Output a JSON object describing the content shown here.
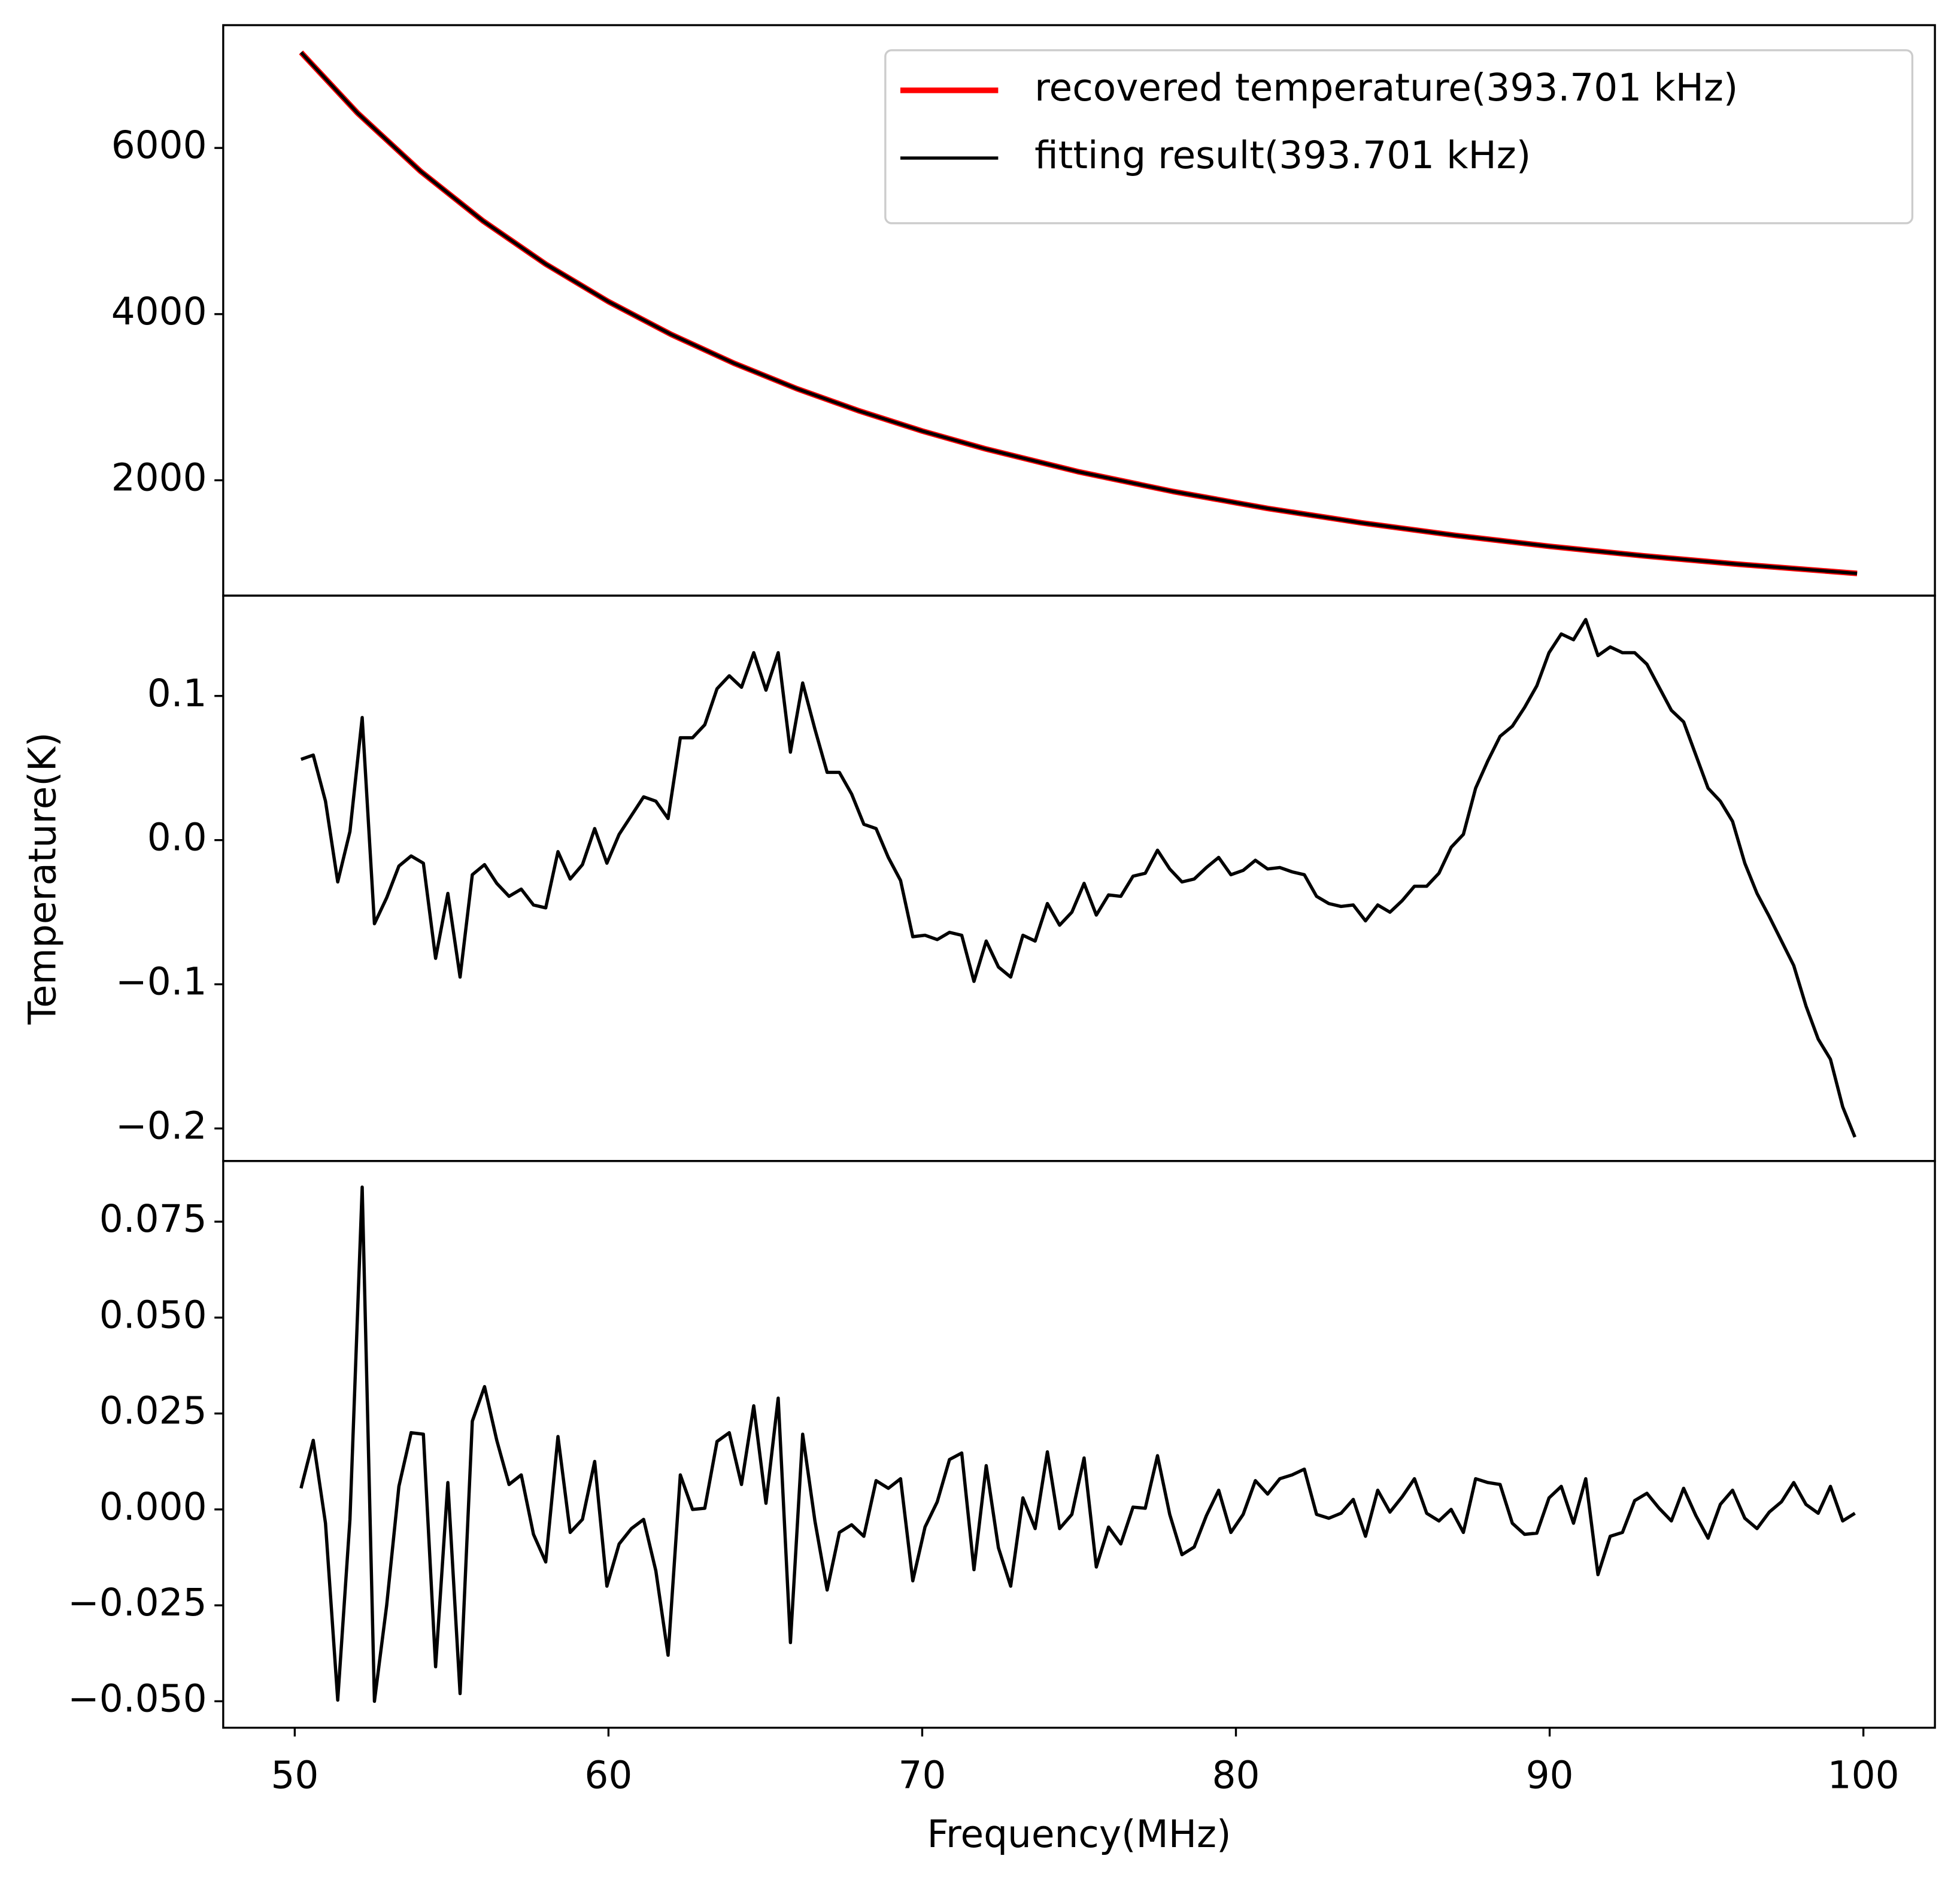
{
  "chart_data": [
    {
      "type": "line",
      "x": [
        50.2,
        52,
        54,
        56,
        58,
        60,
        62,
        64,
        66,
        68,
        70,
        72,
        75,
        78,
        81,
        84,
        87,
        90,
        93,
        96,
        99.8
      ],
      "series": [
        {
          "name": "recovered temperature(393.701 kHz)",
          "color": "#ff0000",
          "values": [
            7150,
            6421,
            5723,
            5122,
            4602,
            4150,
            3755,
            3409,
            3103,
            2834,
            2593,
            2380,
            2101,
            1865,
            1662,
            1488,
            1336,
            1205,
            1090,
            990,
            879
          ]
        },
        {
          "name": "fitting result(393.701 kHz)",
          "color": "#000000",
          "values": [
            7150,
            6421,
            5723,
            5122,
            4602,
            4150,
            3755,
            3409,
            3103,
            2834,
            2593,
            2380,
            2101,
            1865,
            1662,
            1488,
            1336,
            1205,
            1090,
            990,
            879
          ]
        }
      ],
      "xlim": [
        47.72,
        102.28
      ],
      "ylim": [
        612,
        7478
      ],
      "yticks": [
        2000,
        4000,
        6000
      ],
      "legend": "upper right"
    },
    {
      "type": "line",
      "ylabel": "Temperature(K)",
      "x": [
        50.2,
        50.59,
        50.98,
        51.37,
        51.76,
        52.15,
        52.54,
        52.93,
        53.32,
        53.71,
        54.1,
        54.49,
        54.88,
        55.27,
        55.66,
        56.05,
        56.44,
        56.83,
        57.22,
        57.61,
        58.0,
        58.39,
        58.78,
        59.17,
        59.56,
        59.95,
        60.34,
        60.73,
        61.12,
        61.51,
        61.9,
        62.29,
        62.68,
        63.07,
        63.46,
        63.85,
        64.24,
        64.63,
        65.02,
        65.41,
        65.8,
        66.19,
        66.58,
        66.97,
        67.36,
        67.75,
        68.14,
        68.53,
        68.92,
        69.31,
        69.7,
        70.09,
        70.48,
        70.87,
        71.26,
        71.65,
        72.04,
        72.43,
        72.82,
        73.21,
        73.6,
        73.99,
        74.38,
        74.77,
        75.16,
        75.55,
        75.94,
        76.33,
        76.72,
        77.11,
        77.5,
        77.89,
        78.28,
        78.67,
        79.06,
        79.45,
        79.84,
        80.23,
        80.62,
        81.01,
        81.4,
        81.79,
        82.18,
        82.57,
        82.96,
        83.35,
        83.74,
        84.13,
        84.52,
        84.91,
        85.3,
        85.69,
        86.08,
        86.47,
        86.86,
        87.25,
        87.64,
        88.03,
        88.42,
        88.81,
        89.2,
        89.59,
        89.98,
        90.37,
        90.76,
        91.15,
        91.54,
        91.93,
        92.32,
        92.71,
        93.1,
        93.49,
        93.88,
        94.27,
        94.66,
        95.05,
        95.44,
        95.83,
        96.22,
        96.61,
        97.0,
        97.39,
        97.78,
        98.17,
        98.56,
        98.95,
        99.34,
        99.73
      ],
      "series": [
        {
          "color": "#000000",
          "values": [
            0.056,
            0.059,
            0.027,
            -0.029,
            0.006,
            0.085,
            -0.058,
            -0.04,
            -0.018,
            -0.011,
            -0.016,
            -0.082,
            -0.037,
            -0.095,
            -0.024,
            -0.017,
            -0.03,
            -0.039,
            -0.034,
            -0.045,
            -0.047,
            -0.008,
            -0.027,
            -0.017,
            0.008,
            -0.016,
            0.004,
            0.017,
            0.03,
            0.027,
            0.015,
            0.071,
            0.071,
            0.08,
            0.105,
            0.114,
            0.106,
            0.13,
            0.104,
            0.13,
            0.061,
            0.109,
            0.077,
            0.047,
            0.047,
            0.032,
            0.011,
            0.008,
            -0.012,
            -0.028,
            -0.067,
            -0.066,
            -0.069,
            -0.064,
            -0.066,
            -0.098,
            -0.07,
            -0.088,
            -0.095,
            -0.066,
            -0.07,
            -0.044,
            -0.059,
            -0.05,
            -0.03,
            -0.052,
            -0.038,
            -0.039,
            -0.025,
            -0.023,
            -0.007,
            -0.02,
            -0.029,
            -0.027,
            -0.019,
            -0.012,
            -0.024,
            -0.021,
            -0.014,
            -0.02,
            -0.019,
            -0.022,
            -0.024,
            -0.039,
            -0.044,
            -0.046,
            -0.045,
            -0.056,
            -0.045,
            -0.05,
            -0.042,
            -0.032,
            -0.032,
            -0.023,
            -0.005,
            0.004,
            0.036,
            0.055,
            0.072,
            0.079,
            0.092,
            0.107,
            0.13,
            0.143,
            0.139,
            0.153,
            0.128,
            0.134,
            0.13,
            0.13,
            0.122,
            0.106,
            0.09,
            0.082,
            0.059,
            0.036,
            0.027,
            0.013,
            -0.016,
            -0.037,
            -0.053,
            -0.07,
            -0.087,
            -0.115,
            -0.138,
            -0.152,
            -0.185,
            -0.206
          ]
        }
      ],
      "xlim": [
        47.72,
        102.28
      ],
      "ylim": [
        -0.2226,
        0.1696
      ],
      "yticks": [
        {
          "value": -0.2,
          "label": "−0.2"
        },
        {
          "value": -0.1,
          "label": "−0.1"
        },
        {
          "value": 0,
          "label": "0.0"
        },
        0.1
      ]
    },
    {
      "type": "line",
      "xlabel": "Frequency(MHz)",
      "x": [
        50.2,
        50.59,
        50.98,
        51.37,
        51.76,
        52.15,
        52.54,
        52.93,
        53.32,
        53.71,
        54.1,
        54.49,
        54.88,
        55.27,
        55.66,
        56.05,
        56.44,
        56.83,
        57.22,
        57.61,
        58.0,
        58.39,
        58.78,
        59.17,
        59.56,
        59.95,
        60.34,
        60.73,
        61.12,
        61.51,
        61.9,
        62.29,
        62.68,
        63.07,
        63.46,
        63.85,
        64.24,
        64.63,
        65.02,
        65.41,
        65.8,
        66.19,
        66.58,
        66.97,
        67.36,
        67.75,
        68.14,
        68.53,
        68.92,
        69.31,
        69.7,
        70.09,
        70.48,
        70.87,
        71.26,
        71.65,
        72.04,
        72.43,
        72.82,
        73.21,
        73.6,
        73.99,
        74.38,
        74.77,
        75.16,
        75.55,
        75.94,
        76.33,
        76.72,
        77.11,
        77.5,
        77.89,
        78.28,
        78.67,
        79.06,
        79.45,
        79.84,
        80.23,
        80.62,
        81.01,
        81.4,
        81.79,
        82.18,
        82.57,
        82.96,
        83.35,
        83.74,
        84.13,
        84.52,
        84.91,
        85.3,
        85.69,
        86.08,
        86.47,
        86.86,
        87.25,
        87.64,
        88.03,
        88.42,
        88.81,
        89.2,
        89.59,
        89.98,
        90.37,
        90.76,
        91.15,
        91.54,
        91.93,
        92.32,
        92.71,
        93.1,
        93.49,
        93.88,
        94.27,
        94.66,
        95.05,
        95.44,
        95.83,
        96.22,
        96.61,
        97.0,
        97.39,
        97.78,
        98.17,
        98.56,
        98.95,
        99.34,
        99.73
      ],
      "series": [
        {
          "color": "#000000",
          "values": [
            0.0055,
            0.018,
            -0.0036,
            -0.0497,
            -0.0026,
            0.084,
            -0.05,
            -0.025,
            0.006,
            0.02,
            0.0196,
            -0.041,
            0.007,
            -0.048,
            0.023,
            0.032,
            0.018,
            0.0065,
            0.009,
            -0.0065,
            -0.0137,
            0.019,
            -0.006,
            -0.0026,
            0.0125,
            -0.02,
            -0.009,
            -0.005,
            -0.0026,
            -0.016,
            -0.038,
            0.009,
            0.0,
            0.0003,
            0.0177,
            0.02,
            0.0065,
            0.027,
            0.0016,
            0.029,
            -0.0347,
            0.0196,
            -0.003,
            -0.021,
            -0.006,
            -0.004,
            -0.007,
            0.0075,
            0.0055,
            0.008,
            -0.0186,
            -0.0046,
            0.002,
            0.013,
            0.0147,
            -0.0157,
            0.0114,
            -0.01,
            -0.02,
            0.003,
            -0.005,
            0.015,
            -0.005,
            -0.0013,
            0.0134,
            -0.015,
            -0.0046,
            -0.009,
            0.0006,
            0.0003,
            0.014,
            -0.0013,
            -0.0118,
            -0.0098,
            -0.0016,
            0.005,
            -0.006,
            -0.0013,
            0.0075,
            0.004,
            0.008,
            0.009,
            0.0105,
            -0.0013,
            -0.0023,
            -0.001,
            0.0026,
            -0.007,
            0.005,
            -0.0007,
            0.0033,
            0.008,
            -0.001,
            -0.003,
            0.0,
            -0.006,
            0.008,
            0.007,
            0.0065,
            -0.0036,
            -0.0065,
            -0.0062,
            0.003,
            0.006,
            -0.0036,
            0.008,
            -0.017,
            -0.007,
            -0.006,
            0.0023,
            0.0042,
            0.0003,
            -0.003,
            0.0055,
            -0.0016,
            -0.0075,
            0.0013,
            0.005,
            -0.0023,
            -0.005,
            -0.0007,
            0.002,
            0.007,
            0.0013,
            -0.001,
            0.006,
            -0.003,
            -0.001
          ]
        }
      ],
      "xlim": [
        47.72,
        102.28
      ],
      "ylim": [
        -0.0569,
        0.0908
      ],
      "xticks": [
        50,
        60,
        70,
        80,
        90,
        100
      ],
      "yticks": [
        {
          "value": -0.05,
          "label": "−0.050"
        },
        {
          "value": -0.025,
          "label": "−0.025"
        },
        {
          "value": 0,
          "label": "0.000"
        },
        0.025,
        {
          "value": 0.05,
          "label": "0.050"
        },
        0.075
      ]
    }
  ]
}
